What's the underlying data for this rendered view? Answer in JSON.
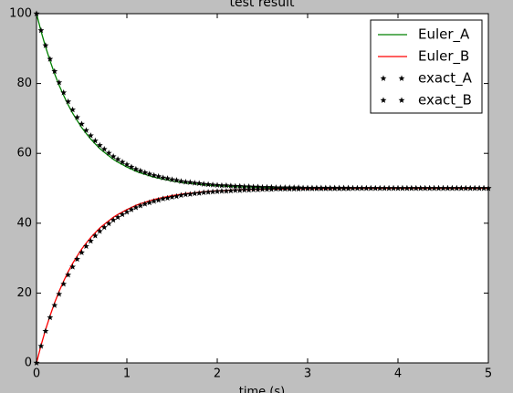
{
  "chart_data": {
    "type": "line",
    "title": "test result",
    "xlabel": "time (s)",
    "x": [
      0,
      0.05,
      0.1,
      0.15,
      0.2,
      0.25,
      0.3,
      0.35,
      0.4,
      0.45,
      0.5,
      0.55,
      0.6,
      0.65,
      0.7,
      0.75,
      0.8,
      0.85,
      0.9,
      0.95,
      1,
      1.05,
      1.1,
      1.15,
      1.2,
      1.25,
      1.3,
      1.35,
      1.4,
      1.45,
      1.5,
      1.55,
      1.6,
      1.65,
      1.7,
      1.75,
      1.8,
      1.85,
      1.9,
      1.95,
      2,
      2.05,
      2.1,
      2.15,
      2.2,
      2.25,
      2.3,
      2.35,
      2.4,
      2.45,
      2.5,
      2.55,
      2.6,
      2.65,
      2.7,
      2.75,
      2.8,
      2.85,
      2.9,
      2.95,
      3,
      3.05,
      3.1,
      3.15,
      3.2,
      3.25,
      3.3,
      3.35,
      3.4,
      3.45,
      3.5,
      3.55,
      3.6,
      3.65,
      3.7,
      3.75,
      3.8,
      3.85,
      3.9,
      3.95,
      4,
      4.05,
      4.1,
      4.15,
      4.2,
      4.25,
      4.3,
      4.35,
      4.4,
      4.45,
      4.5,
      4.55,
      4.6,
      4.65,
      4.7,
      4.75,
      4.8,
      4.85,
      4.9,
      4.95,
      5
    ],
    "series": [
      {
        "name": "Euler_A",
        "color": "#008000",
        "style": "line",
        "values": [
          100,
          95,
          90.5,
          86.5,
          82.8,
          79.5,
          76.6,
          73.9,
          71.5,
          69.4,
          67.4,
          65.7,
          64.1,
          62.7,
          61.4,
          60.3,
          59.3,
          58.3,
          57.5,
          56.8,
          56.1,
          55.5,
          54.9,
          54.4,
          54,
          53.6,
          53.2,
          52.9,
          52.6,
          52.4,
          52.1,
          51.9,
          51.7,
          51.5,
          51.4,
          51.3,
          51.1,
          51,
          50.9,
          50.8,
          50.7,
          50.7,
          50.6,
          50.5,
          50.5,
          50.4,
          50.4,
          50.4,
          50.3,
          50.3,
          50.3,
          50.2,
          50.2,
          50.2,
          50.2,
          50.2,
          50.1,
          50.1,
          50.1,
          50.1,
          50.1,
          50.1,
          50.1,
          50.1,
          50.1,
          50.1,
          50,
          50,
          50,
          50,
          50,
          50,
          50,
          50,
          50,
          50,
          50,
          50,
          50,
          50,
          50,
          50,
          50,
          50,
          50,
          50,
          50,
          50,
          50,
          50,
          50,
          50,
          50,
          50,
          50,
          50,
          50,
          50,
          50,
          50,
          50
        ]
      },
      {
        "name": "Euler_B",
        "color": "#ff0000",
        "style": "line",
        "values": [
          0,
          5,
          9.5,
          13.5,
          17.2,
          20.5,
          23.4,
          26.1,
          28.5,
          30.6,
          32.6,
          34.3,
          35.9,
          37.3,
          38.6,
          39.7,
          40.7,
          41.7,
          42.5,
          43.2,
          43.9,
          44.5,
          45.1,
          45.6,
          46,
          46.4,
          46.8,
          47.1,
          47.4,
          47.6,
          47.9,
          48.1,
          48.3,
          48.5,
          48.6,
          48.7,
          48.9,
          49,
          49.1,
          49.2,
          49.3,
          49.3,
          49.4,
          49.5,
          49.5,
          49.6,
          49.6,
          49.6,
          49.7,
          49.7,
          49.7,
          49.8,
          49.8,
          49.8,
          49.8,
          49.8,
          49.9,
          49.9,
          49.9,
          49.9,
          49.9,
          49.9,
          49.9,
          49.9,
          49.9,
          49.9,
          50,
          50,
          50,
          50,
          50,
          50,
          50,
          50,
          50,
          50,
          50,
          50,
          50,
          50,
          50,
          50,
          50,
          50,
          50,
          50,
          50,
          50,
          50,
          50,
          50,
          50,
          50,
          50,
          50,
          50,
          50,
          50,
          50,
          50,
          50
        ]
      },
      {
        "name": "exact_A",
        "color": "#000000",
        "style": "star",
        "values": [
          100,
          95.2,
          90.9,
          87,
          83.5,
          80.3,
          77.4,
          74.8,
          72.5,
          70.3,
          68.4,
          66.6,
          65.1,
          63.6,
          62.3,
          61.2,
          60.1,
          59.1,
          58.3,
          57.5,
          56.8,
          56.1,
          55.5,
          55,
          54.5,
          54.1,
          53.7,
          53.4,
          53,
          52.8,
          52.5,
          52.3,
          52,
          51.8,
          51.7,
          51.5,
          51.4,
          51.2,
          51.1,
          51,
          50.9,
          50.8,
          50.8,
          50.7,
          50.6,
          50.6,
          50.5,
          50.5,
          50.4,
          50.4,
          50.3,
          50.3,
          50.3,
          50.2,
          50.2,
          50.2,
          50.2,
          50.2,
          50.2,
          50.1,
          50.1,
          50.1,
          50.1,
          50.1,
          50.1,
          50.1,
          50.1,
          50.1,
          50.1,
          50.1,
          50,
          50,
          50,
          50,
          50,
          50,
          50,
          50,
          50,
          50,
          50,
          50,
          50,
          50,
          50,
          50,
          50,
          50,
          50,
          50,
          50,
          50,
          50,
          50,
          50,
          50,
          50,
          50,
          50,
          50,
          50
        ]
      },
      {
        "name": "exact_B",
        "color": "#000000",
        "style": "star",
        "values": [
          0,
          4.8,
          9.1,
          13,
          16.5,
          19.7,
          22.6,
          25.2,
          27.5,
          29.7,
          31.6,
          33.4,
          34.9,
          36.4,
          37.7,
          38.8,
          39.9,
          40.9,
          41.7,
          42.5,
          43.2,
          43.9,
          44.5,
          45,
          45.5,
          45.9,
          46.3,
          46.6,
          47,
          47.2,
          47.5,
          47.7,
          48,
          48.2,
          48.3,
          48.5,
          48.6,
          48.8,
          48.9,
          49,
          49.1,
          49.2,
          49.2,
          49.3,
          49.4,
          49.4,
          49.5,
          49.5,
          49.6,
          49.6,
          49.7,
          49.7,
          49.7,
          49.8,
          49.8,
          49.8,
          49.8,
          49.8,
          49.8,
          49.9,
          49.9,
          49.9,
          49.9,
          49.9,
          49.9,
          49.9,
          49.9,
          49.9,
          49.9,
          49.9,
          50,
          50,
          50,
          50,
          50,
          50,
          50,
          50,
          50,
          50,
          50,
          50,
          50,
          50,
          50,
          50,
          50,
          50,
          50,
          50,
          50,
          50,
          50,
          50,
          50,
          50,
          50,
          50,
          50,
          50,
          50
        ]
      }
    ],
    "xlim": [
      0,
      5
    ],
    "xticks": [
      0,
      1,
      2,
      3,
      4,
      5
    ],
    "ylim": [
      0,
      100
    ],
    "yticks": [
      0,
      20,
      40,
      60,
      80,
      100
    ],
    "legend": "upper right"
  }
}
